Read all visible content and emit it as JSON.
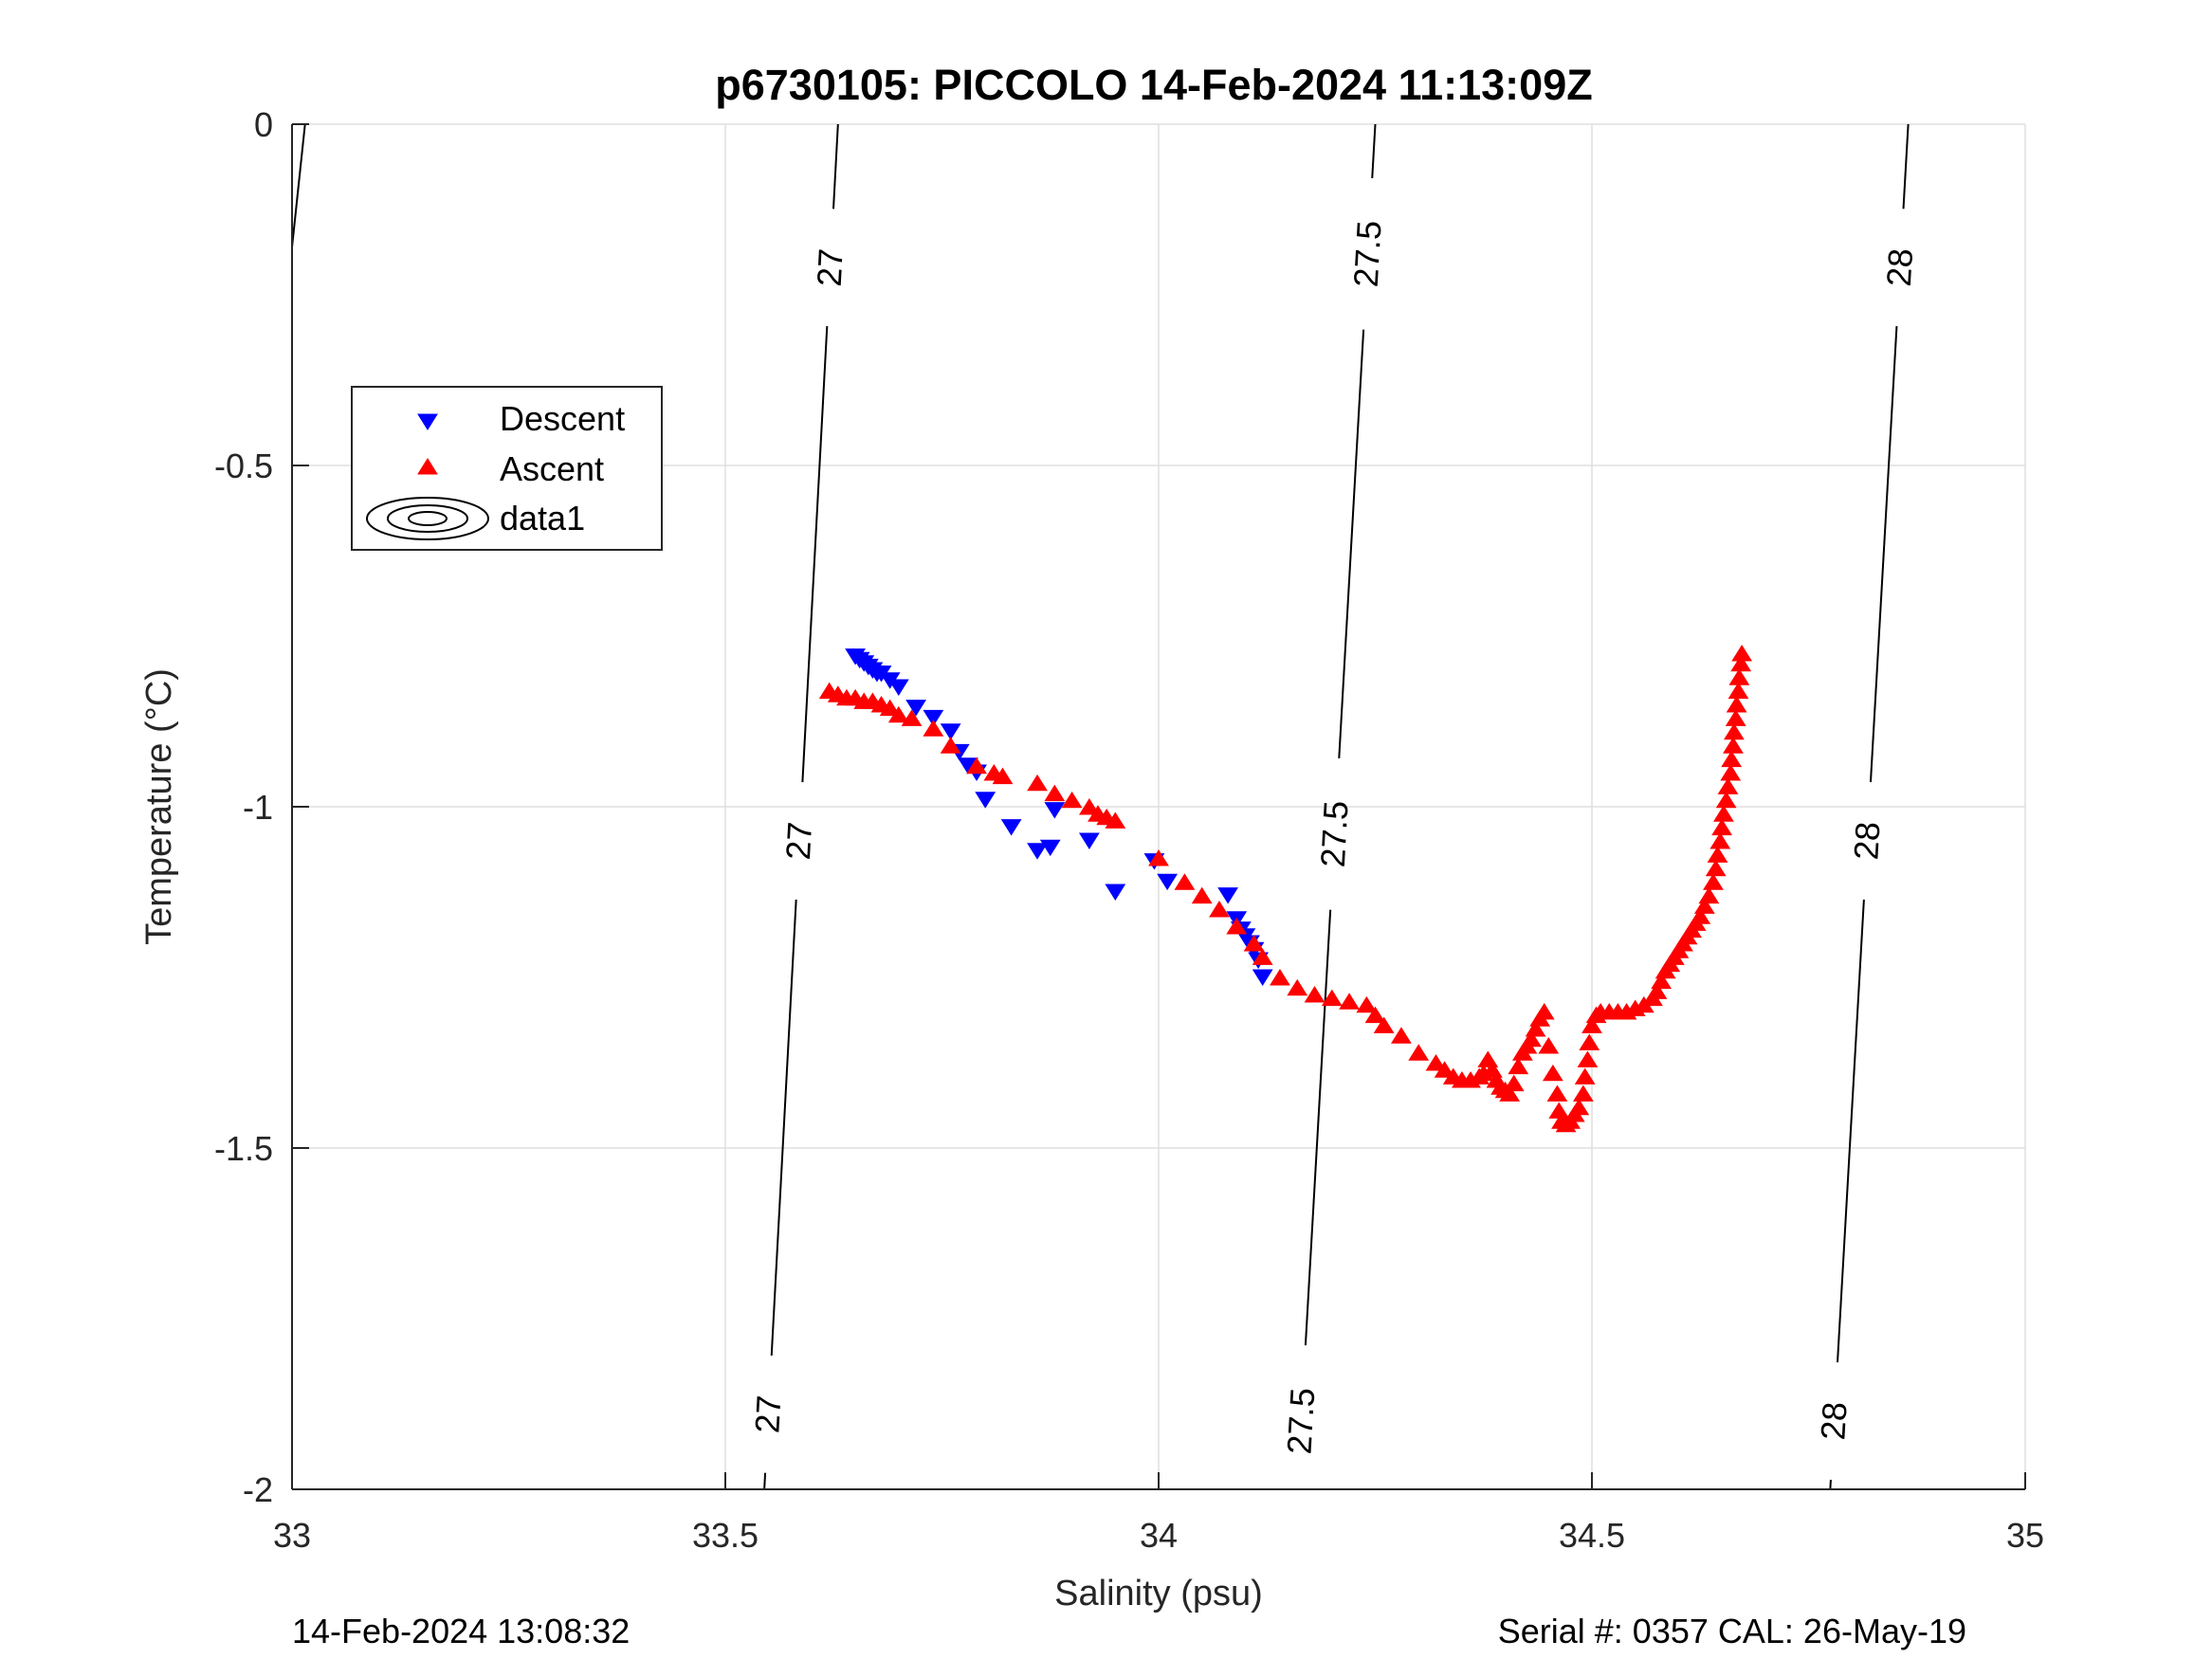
{
  "chart_data": {
    "type": "scatter",
    "title": "p6730105: PICCOLO 14-Feb-2024 11:13:09Z",
    "xlabel": "Salinity (psu)",
    "ylabel": "Temperature (°C)",
    "xlim": [
      33,
      35
    ],
    "ylim": [
      -2,
      0
    ],
    "xticks": [
      33,
      33.5,
      34,
      34.5,
      35
    ],
    "xtick_labels": [
      "33",
      "33.5",
      "34",
      "34.5",
      "35"
    ],
    "yticks": [
      0,
      -0.5,
      -1,
      -1.5,
      -2
    ],
    "ytick_labels": [
      "0",
      "-0.5",
      "-1",
      "-1.5",
      "-2"
    ],
    "grid": true,
    "legend_position": "upper-left",
    "legend": [
      "Descent",
      "Ascent",
      "data1"
    ],
    "series": [
      {
        "name": "Descent",
        "marker": "triangle-down",
        "color": "#0000ff",
        "points": [
          [
            33.65,
            -0.78
          ],
          [
            33.655,
            -0.785
          ],
          [
            33.66,
            -0.79
          ],
          [
            33.665,
            -0.795
          ],
          [
            33.67,
            -0.8
          ],
          [
            33.675,
            -0.805
          ],
          [
            33.68,
            -0.805
          ],
          [
            33.69,
            -0.815
          ],
          [
            33.7,
            -0.825
          ],
          [
            33.72,
            -0.855
          ],
          [
            33.74,
            -0.87
          ],
          [
            33.76,
            -0.89
          ],
          [
            33.77,
            -0.92
          ],
          [
            33.78,
            -0.94
          ],
          [
            33.79,
            -0.95
          ],
          [
            33.8,
            -0.99
          ],
          [
            33.83,
            -1.03
          ],
          [
            33.86,
            -1.065
          ],
          [
            33.875,
            -1.06
          ],
          [
            33.88,
            -1.005
          ],
          [
            33.92,
            -1.05
          ],
          [
            33.95,
            -1.125
          ],
          [
            33.995,
            -1.08
          ],
          [
            34.01,
            -1.11
          ],
          [
            34.08,
            -1.13
          ],
          [
            34.09,
            -1.165
          ],
          [
            34.095,
            -1.18
          ],
          [
            34.1,
            -1.19
          ],
          [
            34.105,
            -1.2
          ],
          [
            34.11,
            -1.21
          ],
          [
            34.115,
            -1.225
          ],
          [
            34.12,
            -1.25
          ]
        ]
      },
      {
        "name": "Ascent",
        "marker": "triangle-up",
        "color": "#ff0000",
        "points": [
          [
            33.62,
            -0.83
          ],
          [
            33.63,
            -0.835
          ],
          [
            33.64,
            -0.84
          ],
          [
            33.65,
            -0.84
          ],
          [
            33.66,
            -0.845
          ],
          [
            33.67,
            -0.845
          ],
          [
            33.68,
            -0.85
          ],
          [
            33.69,
            -0.855
          ],
          [
            33.7,
            -0.865
          ],
          [
            33.715,
            -0.87
          ],
          [
            33.74,
            -0.885
          ],
          [
            33.76,
            -0.91
          ],
          [
            33.79,
            -0.94
          ],
          [
            33.81,
            -0.95
          ],
          [
            33.82,
            -0.955
          ],
          [
            33.86,
            -0.965
          ],
          [
            33.88,
            -0.98
          ],
          [
            33.9,
            -0.99
          ],
          [
            33.92,
            -1.0
          ],
          [
            33.93,
            -1.01
          ],
          [
            33.94,
            -1.015
          ],
          [
            33.95,
            -1.02
          ],
          [
            34.0,
            -1.075
          ],
          [
            34.03,
            -1.11
          ],
          [
            34.05,
            -1.13
          ],
          [
            34.07,
            -1.15
          ],
          [
            34.09,
            -1.175
          ],
          [
            34.11,
            -1.2
          ],
          [
            34.12,
            -1.22
          ],
          [
            34.14,
            -1.25
          ],
          [
            34.16,
            -1.265
          ],
          [
            34.18,
            -1.275
          ],
          [
            34.2,
            -1.28
          ],
          [
            34.22,
            -1.285
          ],
          [
            34.24,
            -1.29
          ],
          [
            34.25,
            -1.305
          ],
          [
            34.26,
            -1.32
          ],
          [
            34.28,
            -1.335
          ],
          [
            34.3,
            -1.36
          ],
          [
            34.32,
            -1.375
          ],
          [
            34.33,
            -1.385
          ],
          [
            34.34,
            -1.395
          ],
          [
            34.35,
            -1.4
          ],
          [
            34.36,
            -1.4
          ],
          [
            34.37,
            -1.395
          ],
          [
            34.375,
            -1.39
          ],
          [
            34.38,
            -1.37
          ],
          [
            34.385,
            -1.385
          ],
          [
            34.39,
            -1.4
          ],
          [
            34.395,
            -1.41
          ],
          [
            34.4,
            -1.415
          ],
          [
            34.405,
            -1.42
          ],
          [
            34.41,
            -1.405
          ],
          [
            34.415,
            -1.38
          ],
          [
            34.42,
            -1.36
          ],
          [
            34.425,
            -1.35
          ],
          [
            34.43,
            -1.34
          ],
          [
            34.435,
            -1.325
          ],
          [
            34.44,
            -1.31
          ],
          [
            34.445,
            -1.3
          ],
          [
            34.45,
            -1.35
          ],
          [
            34.455,
            -1.39
          ],
          [
            34.46,
            -1.42
          ],
          [
            34.462,
            -1.445
          ],
          [
            34.465,
            -1.46
          ],
          [
            34.47,
            -1.465
          ],
          [
            34.475,
            -1.46
          ],
          [
            34.48,
            -1.45
          ],
          [
            34.485,
            -1.44
          ],
          [
            34.49,
            -1.42
          ],
          [
            34.492,
            -1.395
          ],
          [
            34.495,
            -1.37
          ],
          [
            34.497,
            -1.345
          ],
          [
            34.5,
            -1.32
          ],
          [
            34.505,
            -1.305
          ],
          [
            34.51,
            -1.3
          ],
          [
            34.52,
            -1.3
          ],
          [
            34.53,
            -1.3
          ],
          [
            34.54,
            -1.3
          ],
          [
            34.55,
            -1.295
          ],
          [
            34.56,
            -1.29
          ],
          [
            34.57,
            -1.28
          ],
          [
            34.575,
            -1.27
          ],
          [
            34.58,
            -1.255
          ],
          [
            34.585,
            -1.24
          ],
          [
            34.59,
            -1.23
          ],
          [
            34.595,
            -1.22
          ],
          [
            34.6,
            -1.21
          ],
          [
            34.605,
            -1.2
          ],
          [
            34.61,
            -1.19
          ],
          [
            34.615,
            -1.18
          ],
          [
            34.62,
            -1.17
          ],
          [
            34.625,
            -1.16
          ],
          [
            34.63,
            -1.145
          ],
          [
            34.635,
            -1.13
          ],
          [
            34.64,
            -1.11
          ],
          [
            34.643,
            -1.09
          ],
          [
            34.645,
            -1.07
          ],
          [
            34.648,
            -1.05
          ],
          [
            34.65,
            -1.03
          ],
          [
            34.652,
            -1.01
          ],
          [
            34.655,
            -0.99
          ],
          [
            34.657,
            -0.97
          ],
          [
            34.66,
            -0.95
          ],
          [
            34.661,
            -0.93
          ],
          [
            34.663,
            -0.91
          ],
          [
            34.664,
            -0.89
          ],
          [
            34.666,
            -0.87
          ],
          [
            34.667,
            -0.85
          ],
          [
            34.669,
            -0.83
          ],
          [
            34.67,
            -0.81
          ],
          [
            34.672,
            -0.79
          ],
          [
            34.673,
            -0.775
          ]
        ]
      }
    ],
    "contours": {
      "name": "data1",
      "lines": [
        {
          "label": "27",
          "top_x": 33.63,
          "bottom_x": 33.545,
          "label_y": [
            -0.21,
            -1.05,
            -1.89
          ]
        },
        {
          "label": "27.5",
          "top_x": 34.25,
          "bottom_x": 34.16,
          "label_y": [
            -0.19,
            -1.04,
            -1.9
          ]
        },
        {
          "label": "28",
          "top_x": 34.865,
          "bottom_x": 34.775,
          "label_y": [
            -0.21,
            -1.05,
            -1.9
          ]
        }
      ],
      "edge_segment": {
        "top_x": 33.015,
        "bottom_x": 33.0,
        "bottom_y": -0.18
      }
    }
  },
  "footer": {
    "left": "14-Feb-2024 13:08:32",
    "right": "Serial #: 0357  CAL: 26-May-19"
  }
}
